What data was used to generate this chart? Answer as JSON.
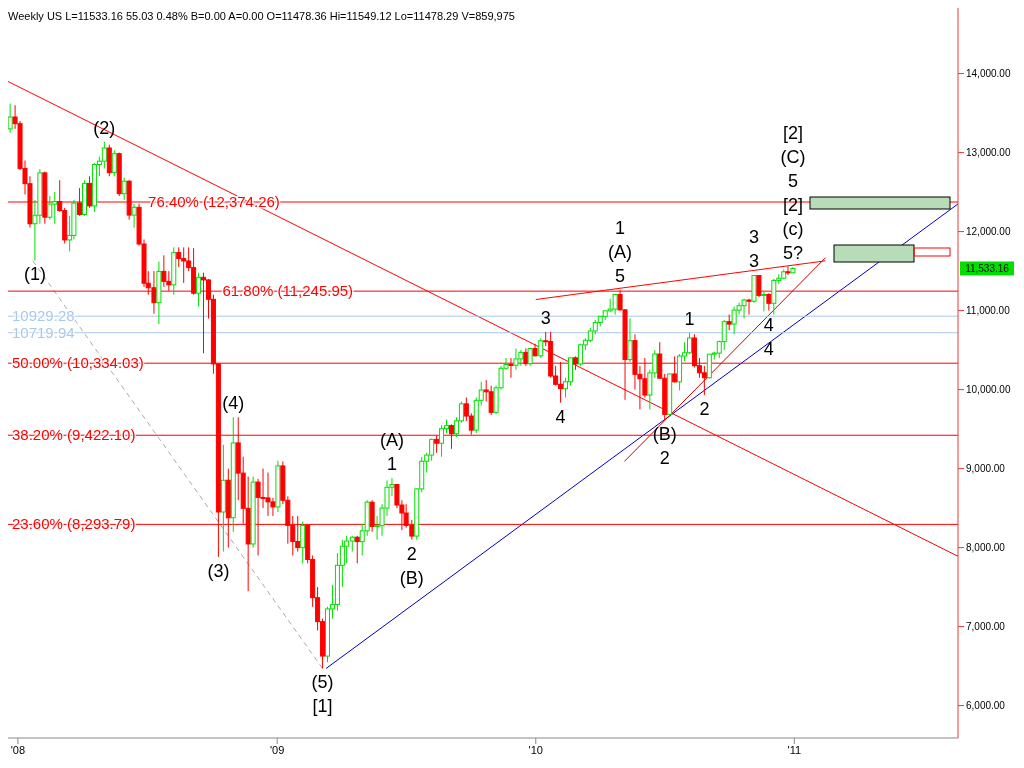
{
  "chart_data": {
    "type": "candlestick",
    "title": "Weekly  US  L=11533.16  55.03  0.48%  B=0.00  A=0.00  O=11478.36  Hi=11549.12  Lo=11478.29  V=859,975",
    "x": [
      "2007-12-21",
      "2007-12-28",
      "2008-01-04",
      "2008-01-11",
      "2008-01-18",
      "2008-01-25",
      "2008-02-01",
      "2008-02-08",
      "2008-02-15",
      "2008-02-22",
      "2008-02-29",
      "2008-03-07",
      "2008-03-14",
      "2008-03-20",
      "2008-03-28",
      "2008-04-04",
      "2008-04-11",
      "2008-04-18",
      "2008-04-25",
      "2008-05-02",
      "2008-05-09",
      "2008-05-16",
      "2008-05-23",
      "2008-05-30",
      "2008-06-06",
      "2008-06-13",
      "2008-06-20",
      "2008-06-27",
      "2008-07-03",
      "2008-07-11",
      "2008-07-18",
      "2008-07-25",
      "2008-08-01",
      "2008-08-08",
      "2008-08-15",
      "2008-08-22",
      "2008-08-29",
      "2008-09-05",
      "2008-09-12",
      "2008-09-19",
      "2008-09-26",
      "2008-10-03",
      "2008-10-10",
      "2008-10-17",
      "2008-10-24",
      "2008-10-31",
      "2008-11-07",
      "2008-11-14",
      "2008-11-21",
      "2008-11-28",
      "2008-12-05",
      "2008-12-12",
      "2008-12-19",
      "2008-12-26",
      "2009-01-02",
      "2009-01-09",
      "2009-01-16",
      "2009-01-23",
      "2009-01-30",
      "2009-02-06",
      "2009-02-13",
      "2009-02-20",
      "2009-02-27",
      "2009-03-06",
      "2009-03-13",
      "2009-03-20",
      "2009-03-27",
      "2009-04-03",
      "2009-04-09",
      "2009-04-17",
      "2009-04-24",
      "2009-05-01",
      "2009-05-08",
      "2009-05-15",
      "2009-05-22",
      "2009-05-29",
      "2009-06-05",
      "2009-06-12",
      "2009-06-19",
      "2009-06-26",
      "2009-07-02",
      "2009-07-10",
      "2009-07-17",
      "2009-07-24",
      "2009-07-31",
      "2009-08-07",
      "2009-08-14",
      "2009-08-21",
      "2009-08-28",
      "2009-09-04",
      "2009-09-11",
      "2009-09-18",
      "2009-09-25",
      "2009-10-02",
      "2009-10-09",
      "2009-10-16",
      "2009-10-23",
      "2009-10-30",
      "2009-11-06",
      "2009-11-13",
      "2009-11-20",
      "2009-11-27",
      "2009-12-04",
      "2009-12-11",
      "2009-12-18",
      "2009-12-24",
      "2009-12-31",
      "2010-01-08",
      "2010-01-15",
      "2010-01-22",
      "2010-01-29",
      "2010-02-05",
      "2010-02-12",
      "2010-02-19",
      "2010-02-26",
      "2010-03-05",
      "2010-03-12",
      "2010-03-19",
      "2010-03-26",
      "2010-04-02",
      "2010-04-09",
      "2010-04-16",
      "2010-04-23",
      "2010-04-30",
      "2010-05-07",
      "2010-05-14",
      "2010-05-21",
      "2010-05-28",
      "2010-06-04",
      "2010-06-11",
      "2010-06-18",
      "2010-06-25",
      "2010-07-02",
      "2010-07-09",
      "2010-07-16",
      "2010-07-23",
      "2010-07-30",
      "2010-08-06",
      "2010-08-13",
      "2010-08-20",
      "2010-08-27",
      "2010-09-03",
      "2010-09-10",
      "2010-09-17",
      "2010-09-24",
      "2010-10-01",
      "2010-10-08",
      "2010-10-15",
      "2010-10-22",
      "2010-10-29",
      "2010-11-05",
      "2010-11-12",
      "2010-11-19",
      "2010-11-26",
      "2010-12-03",
      "2010-12-10",
      "2010-12-17",
      "2010-12-23",
      "2010-12-30"
    ],
    "ohlc": [
      [
        13300,
        13620,
        13250,
        13450
      ],
      [
        13450,
        13600,
        13300,
        13366
      ],
      [
        13366,
        13400,
        12780,
        12800
      ],
      [
        12800,
        12900,
        12470,
        12606
      ],
      [
        12606,
        12700,
        12050,
        12099
      ],
      [
        12099,
        12400,
        11634,
        12207
      ],
      [
        12207,
        12790,
        12100,
        12743
      ],
      [
        12743,
        12760,
        12100,
        12182
      ],
      [
        12182,
        12450,
        12150,
        12348
      ],
      [
        12348,
        12500,
        12100,
        12381
      ],
      [
        12381,
        12650,
        12250,
        12266
      ],
      [
        12266,
        12300,
        11850,
        11894
      ],
      [
        11894,
        12200,
        11750,
        11951
      ],
      [
        11951,
        12400,
        11900,
        12361
      ],
      [
        12361,
        12550,
        12200,
        12216
      ],
      [
        12216,
        12650,
        12200,
        12610
      ],
      [
        12610,
        12700,
        12300,
        12325
      ],
      [
        12325,
        12870,
        12250,
        12849
      ],
      [
        12849,
        12950,
        12700,
        12891
      ],
      [
        12891,
        13136,
        12800,
        13058
      ],
      [
        13058,
        13100,
        12700,
        12746
      ],
      [
        12746,
        13030,
        12700,
        12986
      ],
      [
        12986,
        13000,
        12450,
        12480
      ],
      [
        12480,
        12680,
        12400,
        12638
      ],
      [
        12638,
        12650,
        12150,
        12209
      ],
      [
        12209,
        12350,
        12050,
        12307
      ],
      [
        12307,
        12350,
        11820,
        11843
      ],
      [
        11843,
        11900,
        11300,
        11346
      ],
      [
        11346,
        11500,
        11200,
        11289
      ],
      [
        11289,
        11500,
        10960,
        11100
      ],
      [
        11100,
        11620,
        10830,
        11496
      ],
      [
        11496,
        11700,
        11300,
        11370
      ],
      [
        11370,
        11500,
        11250,
        11326
      ],
      [
        11326,
        11800,
        11200,
        11734
      ],
      [
        11734,
        11800,
        11550,
        11659
      ],
      [
        11659,
        11800,
        11350,
        11628
      ],
      [
        11628,
        11800,
        11500,
        11544
      ],
      [
        11544,
        11790,
        11200,
        11220
      ],
      [
        11220,
        11480,
        11050,
        11421
      ],
      [
        11421,
        11480,
        10460,
        11388
      ],
      [
        11388,
        11400,
        10900,
        11143
      ],
      [
        11143,
        11200,
        10200,
        10325
      ],
      [
        10325,
        10330,
        7882,
        8451
      ],
      [
        8451,
        9300,
        7950,
        8852
      ],
      [
        8852,
        9000,
        8000,
        8378
      ],
      [
        8378,
        9650,
        8200,
        9325
      ],
      [
        9325,
        9650,
        8600,
        8943
      ],
      [
        8943,
        9150,
        8300,
        8497
      ],
      [
        8497,
        8900,
        7449,
        8046
      ],
      [
        8046,
        8900,
        8000,
        8829
      ],
      [
        8829,
        8870,
        7900,
        8635
      ],
      [
        8635,
        9000,
        8500,
        8629
      ],
      [
        8629,
        8950,
        8400,
        8579
      ],
      [
        8579,
        8630,
        8400,
        8515
      ],
      [
        8515,
        9100,
        8450,
        9034
      ],
      [
        9034,
        9090,
        8550,
        8599
      ],
      [
        8599,
        8650,
        8050,
        8281
      ],
      [
        8281,
        8400,
        7900,
        8077
      ],
      [
        8077,
        8400,
        7950,
        8000
      ],
      [
        8000,
        8330,
        7800,
        8280
      ],
      [
        8280,
        8300,
        7800,
        7850
      ],
      [
        7850,
        7900,
        7250,
        7366
      ],
      [
        7366,
        7500,
        6950,
        7063
      ],
      [
        7063,
        7100,
        6470,
        6627
      ],
      [
        6627,
        7250,
        6550,
        7224
      ],
      [
        7224,
        7530,
        7100,
        7279
      ],
      [
        7279,
        7930,
        7200,
        7776
      ],
      [
        7776,
        8100,
        7500,
        8018
      ],
      [
        8018,
        8150,
        7800,
        8083
      ],
      [
        8083,
        8150,
        7950,
        8131
      ],
      [
        8131,
        8150,
        7800,
        8076
      ],
      [
        8076,
        8300,
        7900,
        8212
      ],
      [
        8212,
        8600,
        8150,
        8575
      ],
      [
        8575,
        8600,
        8200,
        8268
      ],
      [
        8268,
        8400,
        8100,
        8277
      ],
      [
        8277,
        8550,
        8150,
        8500
      ],
      [
        8500,
        8850,
        8400,
        8764
      ],
      [
        8764,
        8880,
        8650,
        8799
      ],
      [
        8799,
        8800,
        8500,
        8539
      ],
      [
        8539,
        8600,
        8220,
        8438
      ],
      [
        8438,
        8550,
        8250,
        8280
      ],
      [
        8280,
        8350,
        8100,
        8146
      ],
      [
        8146,
        8750,
        8100,
        8743
      ],
      [
        8743,
        9150,
        8700,
        9093
      ],
      [
        9093,
        9200,
        8950,
        9171
      ],
      [
        9171,
        9380,
        9100,
        9370
      ],
      [
        9370,
        9420,
        9200,
        9321
      ],
      [
        9321,
        9550,
        9150,
        9505
      ],
      [
        9505,
        9620,
        9450,
        9544
      ],
      [
        9544,
        9560,
        9250,
        9441
      ],
      [
        9441,
        9650,
        9400,
        9605
      ],
      [
        9605,
        9850,
        9580,
        9820
      ],
      [
        9820,
        9900,
        9600,
        9665
      ],
      [
        9665,
        9700,
        9430,
        9487
      ],
      [
        9487,
        9900,
        9450,
        9864
      ],
      [
        9864,
        10100,
        9800,
        9995
      ],
      [
        9995,
        10120,
        9850,
        9972
      ],
      [
        9972,
        10050,
        9680,
        9712
      ],
      [
        9712,
        10050,
        9690,
        10023
      ],
      [
        10023,
        10300,
        10000,
        10270
      ],
      [
        10270,
        10400,
        10250,
        10318
      ],
      [
        10318,
        10400,
        10150,
        10309
      ],
      [
        10309,
        10520,
        10250,
        10388
      ],
      [
        10388,
        10500,
        10300,
        10471
      ],
      [
        10471,
        10520,
        10300,
        10328
      ],
      [
        10328,
        10530,
        10300,
        10520
      ],
      [
        10520,
        10580,
        10420,
        10428
      ],
      [
        10428,
        10650,
        10400,
        10618
      ],
      [
        10618,
        10730,
        10550,
        10609
      ],
      [
        10609,
        10730,
        10150,
        10172
      ],
      [
        10172,
        10300,
        10050,
        10067
      ],
      [
        10067,
        10350,
        9835,
        10012
      ],
      [
        10012,
        10150,
        9900,
        10099
      ],
      [
        10099,
        10410,
        10050,
        10402
      ],
      [
        10402,
        10420,
        10250,
        10325
      ],
      [
        10325,
        10580,
        10300,
        10566
      ],
      [
        10566,
        10650,
        10500,
        10624
      ],
      [
        10624,
        10780,
        10600,
        10742
      ],
      [
        10742,
        10880,
        10700,
        10850
      ],
      [
        10850,
        10930,
        10800,
        10927
      ],
      [
        10927,
        11000,
        10880,
        10997
      ],
      [
        10997,
        11150,
        10980,
        11019
      ],
      [
        11019,
        11210,
        10950,
        11204
      ],
      [
        11204,
        11258,
        11000,
        11009
      ],
      [
        11009,
        11020,
        9870,
        10380
      ],
      [
        10380,
        10900,
        10350,
        10620
      ],
      [
        10620,
        10700,
        10000,
        10193
      ],
      [
        10193,
        10300,
        9750,
        10137
      ],
      [
        10137,
        10400,
        9900,
        9931
      ],
      [
        9931,
        10250,
        9750,
        10211
      ],
      [
        10211,
        10500,
        10150,
        10450
      ],
      [
        10450,
        10600,
        10140,
        10144
      ],
      [
        10144,
        10200,
        9614,
        9686
      ],
      [
        9686,
        10200,
        9650,
        10198
      ],
      [
        10198,
        10420,
        10090,
        10098
      ],
      [
        10098,
        10450,
        9990,
        10425
      ],
      [
        10425,
        10600,
        10360,
        10466
      ],
      [
        10466,
        10720,
        10450,
        10653
      ],
      [
        10653,
        10700,
        10280,
        10303
      ],
      [
        10303,
        10400,
        10150,
        10213
      ],
      [
        10213,
        10300,
        9930,
        10150
      ],
      [
        10150,
        10450,
        10140,
        10448
      ],
      [
        10448,
        10480,
        10380,
        10462
      ],
      [
        10462,
        10620,
        10400,
        10607
      ],
      [
        10607,
        10880,
        10500,
        10860
      ],
      [
        10860,
        10950,
        10750,
        10829
      ],
      [
        10829,
        11050,
        10700,
        11006
      ],
      [
        11006,
        11100,
        10950,
        11062
      ],
      [
        11062,
        11150,
        10900,
        11133
      ],
      [
        11133,
        11150,
        10950,
        11118
      ],
      [
        11118,
        11450,
        11100,
        11444
      ],
      [
        11444,
        11450,
        11170,
        11192
      ],
      [
        11192,
        11250,
        10990,
        11204
      ],
      [
        11204,
        11220,
        11000,
        11092
      ],
      [
        11092,
        11400,
        10950,
        11382
      ],
      [
        11382,
        11460,
        11340,
        11410
      ],
      [
        11410,
        11520,
        11400,
        11491
      ],
      [
        11491,
        11560,
        11450,
        11478
      ],
      [
        11478.36,
        11549.12,
        11478.29,
        11533.16
      ]
    ],
    "series": [
      {
        "type": "line",
        "color": "#ff0000",
        "x": [
          "2007-12-18",
          "2011-08-20"
        ],
        "values": [
          13900,
          7890
        ]
      },
      {
        "type": "line",
        "color": "#0000cc",
        "x": [
          "2009-03-11",
          "2011-08-20"
        ],
        "values": [
          6470,
          12350
        ]
      },
      {
        "type": "line",
        "color": "#cc0000",
        "x": [
          "2010-05-06",
          "2011-02-14"
        ],
        "values": [
          9090,
          11670
        ]
      },
      {
        "type": "line",
        "color": "#ff0000",
        "x": [
          "2010-01-01",
          "2011-02-14"
        ],
        "values": [
          11140,
          11630
        ]
      },
      {
        "type": "line",
        "color": "#aaaaaa",
        "line_style": "dashed",
        "x": [
          "2008-01-22",
          "2009-03-06"
        ],
        "values": [
          11630,
          6470
        ]
      }
    ],
    "ref_lines": [
      {
        "axis": "y",
        "value": 12374.26,
        "label": "76.40% (12,374.26)",
        "color": "#ff0000"
      },
      {
        "axis": "y",
        "value": 11245.95,
        "label": "61.80% (11,245.95)",
        "color": "#ff0000"
      },
      {
        "axis": "y",
        "value": 10929.28,
        "label": "10929.28",
        "color": "#a8c8ec"
      },
      {
        "axis": "y",
        "value": 10719.94,
        "label": "10719.94",
        "color": "#a8c8ec"
      },
      {
        "axis": "y",
        "value": 10334.03,
        "label": "50.00% (10,334.03)",
        "color": "#ff0000"
      },
      {
        "axis": "y",
        "value": 9422.1,
        "label": "38.20% (9,422.10)",
        "color": "#ff0000"
      },
      {
        "axis": "y",
        "value": 8293.79,
        "label": "23.60% (8,293.79)",
        "color": "#ff0000"
      }
    ],
    "annotations": [
      "11,533.16",
      {
        "text": "(1)",
        "x": "2008-01-25",
        "y": 11634
      },
      {
        "text": "(2)",
        "x": "2008-05-02",
        "y": 13136
      },
      {
        "text": "(3)",
        "x": "2008-10-10",
        "y": 7882
      },
      {
        "text": "(4)",
        "x": "2008-10-31",
        "y": 9650
      },
      {
        "text": "(5)",
        "x": "2009-03-06",
        "y": 6470
      },
      {
        "text": "[1]",
        "x": "2009-03-06",
        "y": 6470
      },
      {
        "text": "1",
        "x": "2009-06-12",
        "y": 8880
      },
      {
        "text": "(A)",
        "x": "2009-06-12",
        "y": 8880
      },
      {
        "text": "2",
        "x": "2009-07-10",
        "y": 8100
      },
      {
        "text": "(B)",
        "x": "2009-07-10",
        "y": 8100
      },
      {
        "text": "3",
        "x": "2010-01-15",
        "y": 10730
      },
      {
        "text": "4",
        "x": "2010-02-05",
        "y": 9835
      },
      {
        "text": "5",
        "x": "2010-04-30",
        "y": 11258
      },
      {
        "text": "(A)",
        "x": "2010-04-30",
        "y": 11258
      },
      {
        "text": "1",
        "x": "2010-04-30",
        "y": 11258
      },
      {
        "text": "1",
        "x": "2010-08-06",
        "y": 10720
      },
      {
        "text": "2",
        "x": "2010-08-27",
        "y": 9930
      },
      {
        "text": "(B)",
        "x": "2010-07-02",
        "y": 9614
      },
      {
        "text": "2",
        "x": "2010-07-02",
        "y": 9614
      },
      {
        "text": "3",
        "x": "2010-11-05",
        "y": 11450
      },
      {
        "text": "3",
        "x": "2010-11-05",
        "y": 11450
      },
      {
        "text": "4",
        "x": "2010-11-26",
        "y": 11000
      },
      {
        "text": "4",
        "x": "2010-11-26",
        "y": 11000
      },
      {
        "text": "5?",
        "x": "2010-12-30",
        "y": 11549.12
      },
      {
        "text": "(c)",
        "x": "2010-12-30",
        "y": 11549.12
      },
      {
        "text": "[2]",
        "x": "2010-12-30",
        "y": 11549.12
      },
      "5",
      "(C)",
      "[2]"
    ],
    "xlim": [
      "2007-12-18",
      "2011-08-20"
    ],
    "xticks": [
      {
        "value": "2008-01-01",
        "label": "'08"
      },
      {
        "value": "2009-01-01",
        "label": "'09"
      },
      {
        "value": "2010-01-01",
        "label": "'10"
      },
      {
        "value": "2011-01-01",
        "label": "'11"
      }
    ],
    "ylim": [
      5590,
      14830
    ],
    "yticks": [
      {
        "value": 6000,
        "label": "6,000.00"
      },
      {
        "value": 7000,
        "label": "7,000.00"
      },
      {
        "value": 8000,
        "label": "8,000.00"
      },
      {
        "value": 9000,
        "label": "9,000.00"
      },
      {
        "value": 10000,
        "label": "10,000.00"
      },
      {
        "value": 11000,
        "label": "11,000.00"
      },
      {
        "value": 12000,
        "label": "12,000.00"
      },
      {
        "value": 13000,
        "label": "13,000.00"
      },
      {
        "value": 14000,
        "label": "14,000.00"
      }
    ]
  }
}
